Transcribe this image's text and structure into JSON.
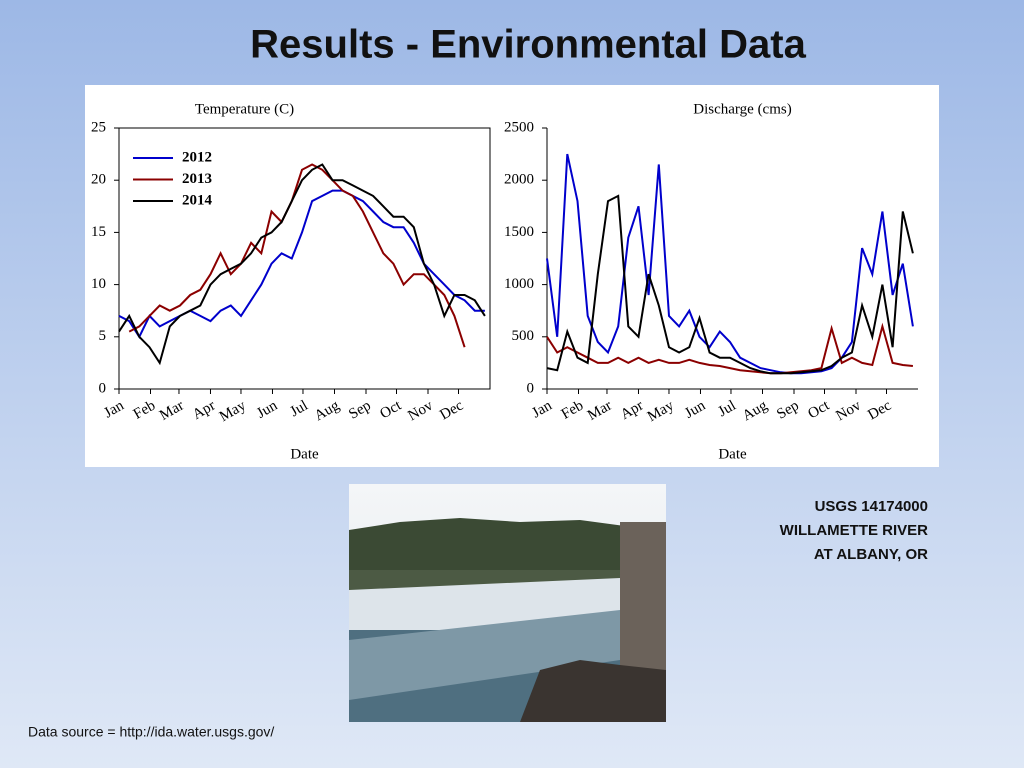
{
  "slide_title": "Results - Environmental Data",
  "station": [
    "USGS 14174000",
    "WILLAMETTE RIVER",
    "AT ALBANY, OR"
  ],
  "source": "Data source = http://ida.water.usgs.gov/",
  "chart_data": [
    {
      "type": "line",
      "title": "Temperature (C)",
      "x_label": "Date",
      "legend": "upper left",
      "xlim": [
        1,
        366
      ],
      "xticks": [
        {
          "value": 1,
          "label": "Jan"
        },
        {
          "value": 32,
          "label": "Feb"
        },
        {
          "value": 60,
          "label": "Mar"
        },
        {
          "value": 91,
          "label": "Apr"
        },
        {
          "value": 121,
          "label": "May"
        },
        {
          "value": 152,
          "label": "Jun"
        },
        {
          "value": 182,
          "label": "Jul"
        },
        {
          "value": 213,
          "label": "Aug"
        },
        {
          "value": 244,
          "label": "Sep"
        },
        {
          "value": 274,
          "label": "Oct"
        },
        {
          "value": 305,
          "label": "Nov"
        },
        {
          "value": 335,
          "label": "Dec"
        }
      ],
      "ylim": [
        0,
        25
      ],
      "yticks": [
        0,
        5,
        10,
        15,
        20,
        25
      ],
      "x": [
        1,
        11,
        21,
        31,
        41,
        51,
        61,
        71,
        81,
        91,
        101,
        111,
        121,
        131,
        141,
        151,
        161,
        171,
        181,
        191,
        201,
        211,
        221,
        231,
        241,
        251,
        261,
        271,
        281,
        291,
        301,
        311,
        321,
        331,
        341,
        351,
        361
      ],
      "series": [
        {
          "name": "2012",
          "color": "#0000cc",
          "values": [
            7,
            6.5,
            5,
            7,
            6,
            6.5,
            7,
            7.5,
            7,
            6.5,
            7.5,
            8,
            7,
            8.5,
            10,
            12,
            13,
            12.5,
            15,
            18,
            18.5,
            19,
            19,
            18.5,
            18,
            17,
            16,
            15.5,
            15.5,
            14,
            12,
            11,
            10,
            9,
            8.5,
            7.5,
            7.5
          ]
        },
        {
          "name": "2013",
          "color": "#8b0000",
          "values": [
            null,
            5.5,
            6,
            7,
            8,
            7.5,
            8,
            9,
            9.5,
            11,
            13,
            11,
            12,
            14,
            13,
            17,
            16,
            18,
            21,
            21.5,
            21,
            20,
            19,
            18.5,
            17,
            15,
            13,
            12,
            10,
            11,
            11,
            10,
            9,
            7,
            4,
            null,
            null
          ]
        },
        {
          "name": "2014",
          "color": "#000000",
          "values": [
            5.5,
            7,
            5,
            4,
            2.5,
            6,
            7,
            7.5,
            8,
            10,
            11,
            11.5,
            12,
            13,
            14.5,
            15,
            16,
            18,
            20,
            21,
            21.5,
            20,
            20,
            19.5,
            19,
            18.5,
            17.5,
            16.5,
            16.5,
            15.5,
            12,
            10,
            7,
            9,
            9,
            8.5,
            7
          ]
        }
      ]
    },
    {
      "type": "line",
      "title": "Discharge (cms)",
      "x_label": "Date",
      "xlim": [
        1,
        366
      ],
      "xticks": [
        {
          "value": 1,
          "label": "Jan"
        },
        {
          "value": 32,
          "label": "Feb"
        },
        {
          "value": 60,
          "label": "Mar"
        },
        {
          "value": 91,
          "label": "Apr"
        },
        {
          "value": 121,
          "label": "May"
        },
        {
          "value": 152,
          "label": "Jun"
        },
        {
          "value": 182,
          "label": "Jul"
        },
        {
          "value": 213,
          "label": "Aug"
        },
        {
          "value": 244,
          "label": "Sep"
        },
        {
          "value": 274,
          "label": "Oct"
        },
        {
          "value": 305,
          "label": "Nov"
        },
        {
          "value": 335,
          "label": "Dec"
        }
      ],
      "ylim": [
        0,
        2500
      ],
      "yticks": [
        0,
        500,
        1000,
        1500,
        2000,
        2500
      ],
      "x": [
        1,
        11,
        21,
        31,
        41,
        51,
        61,
        71,
        81,
        91,
        101,
        111,
        121,
        131,
        141,
        151,
        161,
        171,
        181,
        191,
        201,
        211,
        221,
        231,
        241,
        251,
        261,
        271,
        281,
        291,
        301,
        311,
        321,
        331,
        341,
        351,
        361
      ],
      "series": [
        {
          "color": "#0000cc",
          "values": [
            1250,
            500,
            2250,
            1800,
            700,
            450,
            350,
            600,
            1450,
            1750,
            900,
            2150,
            700,
            600,
            750,
            500,
            400,
            550,
            450,
            300,
            250,
            200,
            180,
            160,
            150,
            150,
            160,
            170,
            200,
            300,
            450,
            1350,
            1100,
            1700,
            900,
            1200,
            600
          ]
        },
        {
          "color": "#8b0000",
          "values": [
            500,
            350,
            400,
            350,
            300,
            250,
            250,
            300,
            250,
            300,
            250,
            280,
            250,
            250,
            280,
            250,
            230,
            220,
            200,
            180,
            170,
            160,
            150,
            150,
            160,
            170,
            180,
            200,
            580,
            250,
            300,
            250,
            230,
            600,
            250,
            230,
            220
          ]
        },
        {
          "color": "#000000",
          "values": [
            200,
            180,
            550,
            300,
            250,
            1100,
            1800,
            1850,
            600,
            500,
            1100,
            800,
            400,
            350,
            400,
            680,
            350,
            300,
            300,
            250,
            200,
            170,
            150,
            150,
            150,
            160,
            170,
            180,
            220,
            300,
            350,
            800,
            500,
            1000,
            400,
            1700,
            1300
          ]
        }
      ]
    }
  ]
}
